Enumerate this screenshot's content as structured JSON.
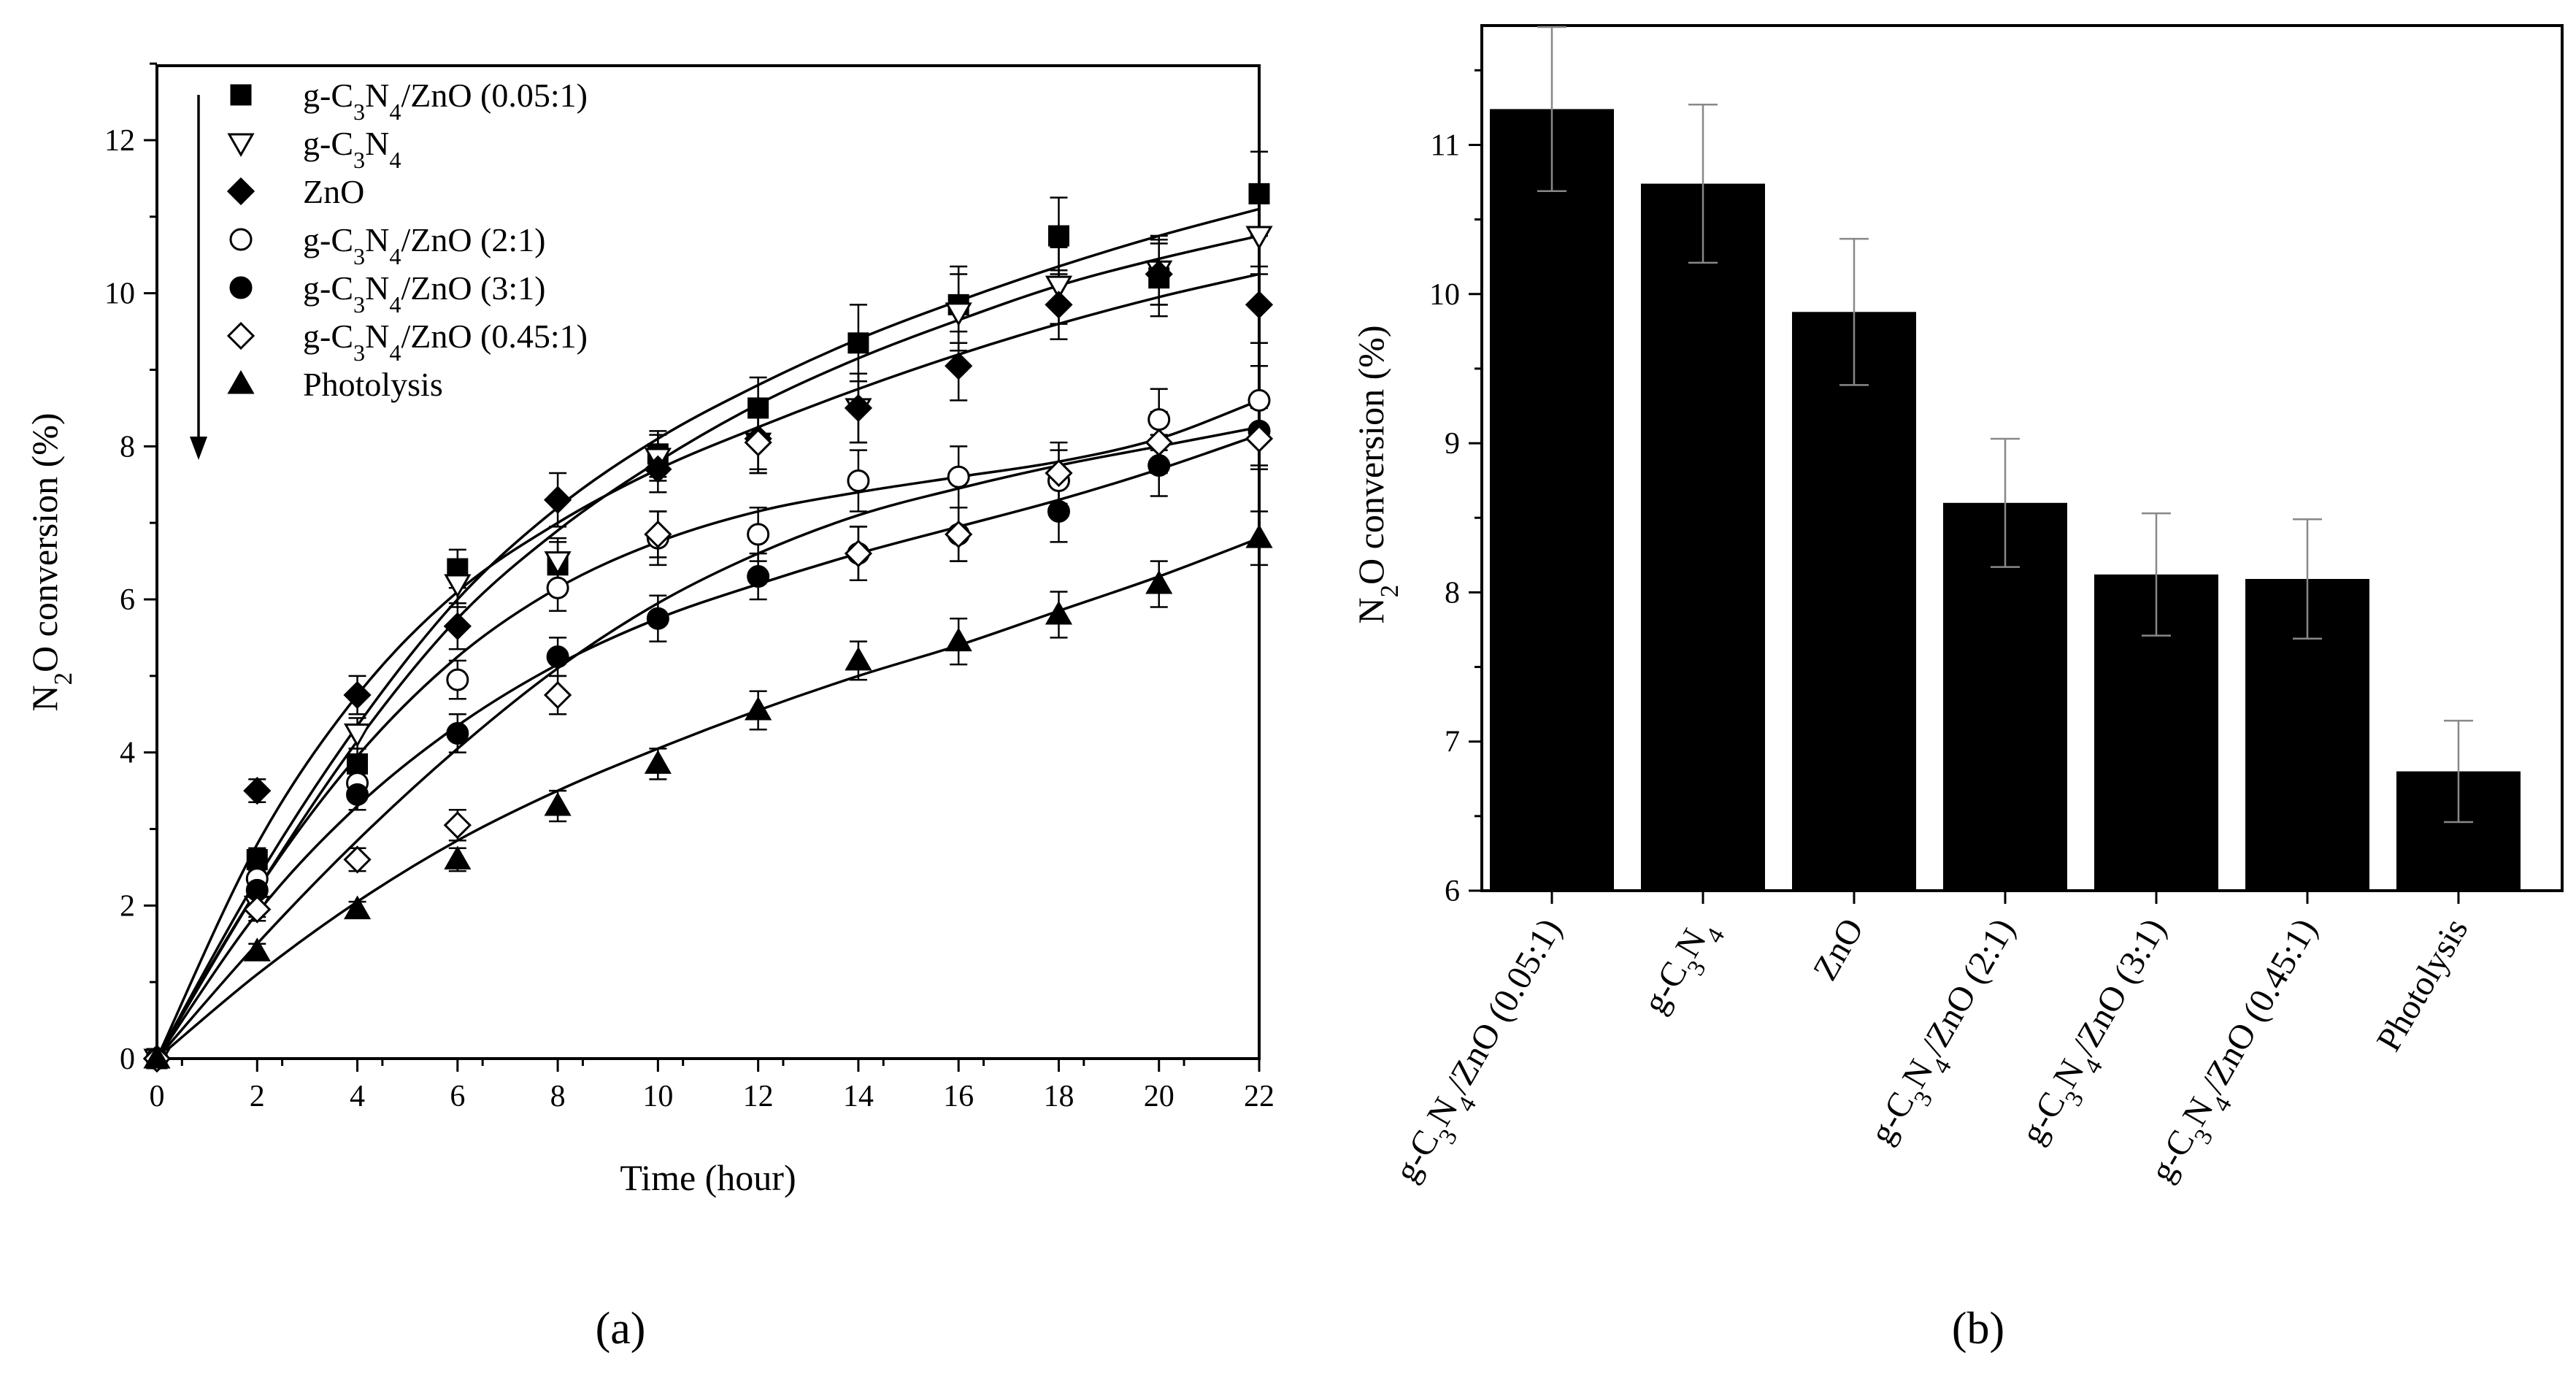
{
  "chart_data": [
    {
      "type": "scatter",
      "panel_label": "(a)",
      "xlabel": "Time (hour)",
      "ylabel": "N2O conversion (%)",
      "xlim": [
        0,
        22
      ],
      "ylim": [
        0,
        13
      ],
      "xticks": [
        "0",
        "2",
        "4",
        "6",
        "8",
        "10",
        "12",
        "14",
        "16",
        "18",
        "20",
        "22"
      ],
      "yticks": [
        "0",
        "2",
        "4",
        "6",
        "8",
        "10",
        "12"
      ],
      "x": [
        0,
        2,
        4,
        6,
        8,
        10,
        12,
        14,
        16,
        18,
        20,
        22
      ],
      "legend_placement": "top-left",
      "legend_arrow": "down",
      "series": [
        {
          "name": "g-C3N4/ZnO (0.05:1)",
          "marker": "square-filled",
          "values": [
            0,
            2.6,
            3.85,
            6.4,
            6.45,
            7.9,
            8.5,
            9.35,
            9.85,
            10.75,
            10.2,
            11.3
          ],
          "errors": [
            0,
            0.15,
            0.2,
            0.25,
            0.3,
            0.3,
            0.4,
            0.5,
            0.5,
            0.5,
            0.5,
            0.55
          ],
          "fit": [
            0,
            2.35,
            4.35,
            6.0,
            7.2,
            8.1,
            8.8,
            9.4,
            9.9,
            10.35,
            10.75,
            11.1
          ]
        },
        {
          "name": "g-C3N4",
          "marker": "triangle-down-open",
          "values": [
            0,
            2.0,
            4.25,
            6.2,
            6.5,
            7.85,
            8.05,
            8.5,
            9.75,
            10.1,
            10.3,
            10.75
          ],
          "errors": [
            0,
            0.15,
            0.2,
            0.3,
            0.3,
            0.3,
            0.4,
            0.45,
            0.5,
            0.5,
            0.45,
            0.5
          ],
          "fit": [
            0,
            2.2,
            4.15,
            5.75,
            6.9,
            7.8,
            8.55,
            9.15,
            9.65,
            10.1,
            10.45,
            10.75
          ]
        },
        {
          "name": "ZnO",
          "marker": "diamond-filled",
          "values": [
            0,
            3.5,
            4.75,
            5.65,
            7.3,
            7.7,
            8.1,
            8.5,
            9.05,
            9.85,
            10.25,
            9.85
          ],
          "errors": [
            0,
            0.15,
            0.25,
            0.3,
            0.35,
            0.3,
            0.4,
            0.45,
            0.45,
            0.45,
            0.4,
            0.5
          ],
          "fit": [
            0,
            2.8,
            4.75,
            6.1,
            7.0,
            7.7,
            8.25,
            8.75,
            9.2,
            9.6,
            9.95,
            10.25
          ]
        },
        {
          "name": "g-C3N4/ZnO (2:1)",
          "marker": "circle-open",
          "values": [
            0,
            2.35,
            3.6,
            4.95,
            6.15,
            6.8,
            6.85,
            7.55,
            7.6,
            7.55,
            8.35,
            8.6
          ],
          "errors": [
            0,
            0.15,
            0.2,
            0.25,
            0.3,
            0.35,
            0.35,
            0.4,
            0.4,
            0.4,
            0.4,
            0.45
          ],
          "fit": [
            0,
            2.2,
            3.95,
            5.25,
            6.15,
            6.75,
            7.15,
            7.4,
            7.6,
            7.8,
            8.1,
            8.6
          ]
        },
        {
          "name": "g-C3N4/ZnO (3:1)",
          "marker": "circle-filled",
          "values": [
            0,
            2.2,
            3.45,
            4.25,
            5.25,
            5.75,
            6.3,
            6.6,
            6.85,
            7.15,
            7.75,
            8.2
          ],
          "errors": [
            0,
            0.15,
            0.2,
            0.25,
            0.25,
            0.3,
            0.3,
            0.35,
            0.35,
            0.4,
            0.4,
            0.45
          ],
          "fit": [
            0,
            1.9,
            3.3,
            4.35,
            5.15,
            5.75,
            6.2,
            6.6,
            6.95,
            7.3,
            7.7,
            8.15
          ]
        },
        {
          "name": "g-C3N4/ZnO (0.45:1)",
          "marker": "diamond-open",
          "values": [
            0,
            1.95,
            2.6,
            3.05,
            4.75,
            6.85,
            8.05,
            6.6,
            6.85,
            7.65,
            8.05,
            8.1
          ],
          "errors": [
            0,
            0.15,
            0.15,
            0.2,
            0.25,
            0.3,
            0.4,
            0.35,
            0.35,
            0.4,
            0.4,
            0.4
          ],
          "fit": [
            0,
            1.5,
            2.85,
            4.05,
            5.1,
            5.95,
            6.6,
            7.1,
            7.45,
            7.75,
            8.0,
            8.25
          ]
        },
        {
          "name": "Photolysis",
          "marker": "triangle-up-filled",
          "values": [
            0,
            1.4,
            1.95,
            2.6,
            3.3,
            3.85,
            4.55,
            5.2,
            5.45,
            5.8,
            6.2,
            6.8
          ],
          "errors": [
            0,
            0.1,
            0.1,
            0.15,
            0.2,
            0.2,
            0.25,
            0.25,
            0.3,
            0.3,
            0.3,
            0.35
          ],
          "fit": [
            0,
            1.1,
            2.05,
            2.85,
            3.5,
            4.05,
            4.55,
            5.0,
            5.4,
            5.85,
            6.3,
            6.8
          ]
        }
      ]
    },
    {
      "type": "bar",
      "panel_label": "(b)",
      "ylabel": "N2O conversion (%)",
      "ylim": [
        6,
        11.8
      ],
      "yticks": [
        "6",
        "7",
        "8",
        "9",
        "10",
        "11"
      ],
      "categories": [
        "g-C3N4/ZnO (0.05:1)",
        "g-C3N4",
        "ZnO",
        "g-C3N4/ZnO (2:1)",
        "g-C3N4/ZnO (3:1)",
        "g-C3N4/ZnO (0.45:1)",
        "Photolysis"
      ],
      "values": [
        11.24,
        10.74,
        9.88,
        8.6,
        8.12,
        8.09,
        6.8
      ],
      "errors": [
        0.55,
        0.53,
        0.49,
        0.43,
        0.41,
        0.4,
        0.34
      ],
      "bar_color": "#000000"
    }
  ]
}
